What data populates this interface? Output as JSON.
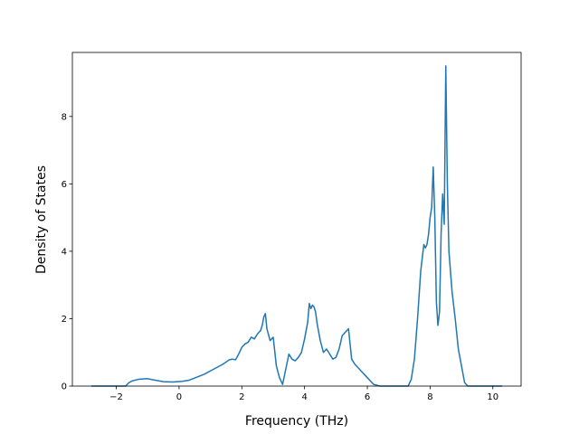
{
  "chart_data": {
    "type": "line",
    "title": "",
    "xlabel": "Frequency (THz)",
    "ylabel": "Density of States",
    "xlim": [
      -3.4,
      10.9
    ],
    "ylim": [
      0,
      9.9
    ],
    "xticks": [
      -2,
      0,
      2,
      4,
      6,
      8,
      10
    ],
    "xtick_labels": [
      "−2",
      "0",
      "2",
      "4",
      "6",
      "8",
      "10"
    ],
    "yticks": [
      0,
      2,
      4,
      6,
      8
    ],
    "ytick_labels": [
      "0",
      "2",
      "4",
      "6",
      "8"
    ],
    "grid": false,
    "legend": null,
    "line_color": "#1f77b4",
    "series": [
      {
        "x": [
          -2.8,
          -1.7,
          -1.6,
          -1.5,
          -1.3,
          -1.0,
          -0.8,
          -0.5,
          -0.2,
          0.1,
          0.3,
          0.5,
          0.8,
          1.1,
          1.4,
          1.6,
          1.7,
          1.8,
          1.9,
          2.0,
          2.1,
          2.2,
          2.3,
          2.4,
          2.5,
          2.6,
          2.65,
          2.7,
          2.75,
          2.8,
          2.9,
          3.0,
          3.1,
          3.2,
          3.3,
          3.4,
          3.5,
          3.6,
          3.7,
          3.8,
          3.9,
          4.0,
          4.1,
          4.15,
          4.2,
          4.25,
          4.3,
          4.35,
          4.4,
          4.45,
          4.5,
          4.6,
          4.7,
          4.8,
          4.9,
          5.0,
          5.1,
          5.2,
          5.3,
          5.4,
          5.5,
          5.6,
          5.8,
          6.0,
          6.2,
          6.4,
          7.3,
          7.4,
          7.5,
          7.6,
          7.7,
          7.8,
          7.85,
          7.9,
          7.95,
          8.0,
          8.05,
          8.1,
          8.15,
          8.2,
          8.25,
          8.3,
          8.35,
          8.4,
          8.45,
          8.5,
          8.55,
          8.6,
          8.7,
          8.8,
          8.9,
          9.0,
          9.1,
          9.2,
          9.3,
          10.3
        ],
        "y": [
          0,
          0,
          0.1,
          0.15,
          0.2,
          0.22,
          0.18,
          0.13,
          0.12,
          0.14,
          0.17,
          0.24,
          0.35,
          0.5,
          0.65,
          0.78,
          0.8,
          0.78,
          0.95,
          1.15,
          1.25,
          1.3,
          1.45,
          1.4,
          1.55,
          1.65,
          1.8,
          2.05,
          2.15,
          1.7,
          1.35,
          1.45,
          0.6,
          0.25,
          0.05,
          0.5,
          0.95,
          0.8,
          0.75,
          0.85,
          1.0,
          1.4,
          1.9,
          2.45,
          2.3,
          2.4,
          2.35,
          2.2,
          1.85,
          1.6,
          1.35,
          1.0,
          1.1,
          0.95,
          0.8,
          0.85,
          1.1,
          1.5,
          1.6,
          1.7,
          0.8,
          0.65,
          0.45,
          0.25,
          0.05,
          0,
          0,
          0.2,
          0.8,
          2.0,
          3.4,
          4.2,
          4.1,
          4.2,
          4.5,
          5.0,
          5.3,
          6.5,
          5.0,
          2.5,
          1.8,
          2.2,
          4.5,
          5.7,
          4.8,
          9.5,
          6.0,
          4.0,
          2.8,
          2.0,
          1.1,
          0.6,
          0.1,
          0,
          0,
          0
        ]
      }
    ]
  }
}
